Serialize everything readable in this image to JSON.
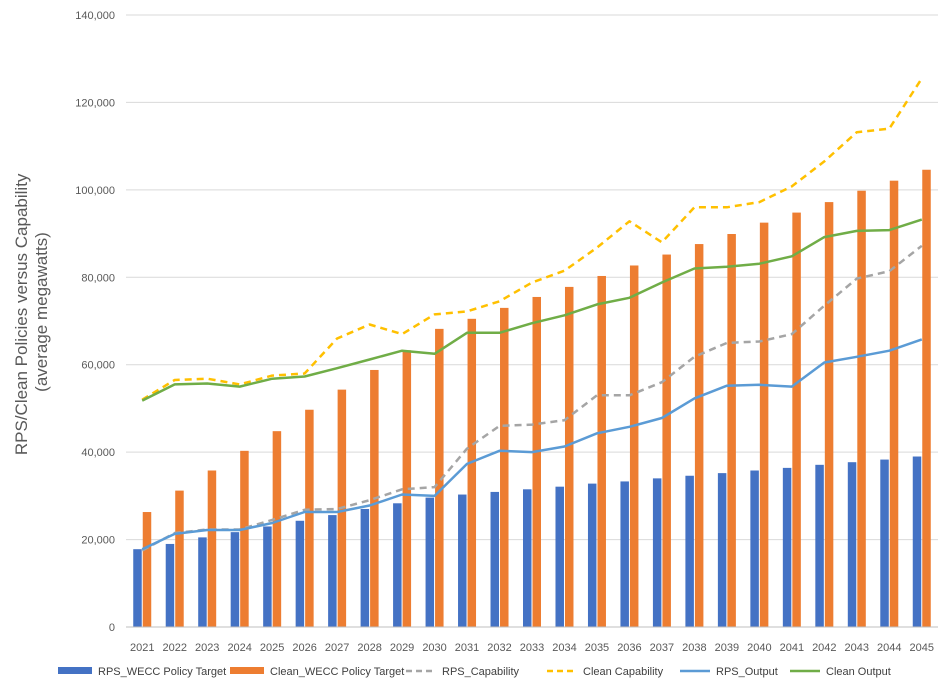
{
  "chart_data": {
    "type": "bar",
    "title": "",
    "ylabel_line1": "RPS/Clean Policies versus Capability",
    "ylabel_line2": "(average megawatts)",
    "xlabel": "",
    "ylim": [
      0,
      140000
    ],
    "yticks": [
      0,
      20000,
      40000,
      60000,
      80000,
      100000,
      120000,
      140000
    ],
    "ytick_labels": [
      "0",
      "20,000",
      "40,000",
      "60,000",
      "80,000",
      "100,000",
      "120,000",
      "140,000"
    ],
    "grid": true,
    "legend_position": "bottom",
    "categories": [
      "2021",
      "2022",
      "2023",
      "2024",
      "2025",
      "2026",
      "2027",
      "2028",
      "2029",
      "2030",
      "2031",
      "2032",
      "2033",
      "2034",
      "2035",
      "2036",
      "2037",
      "2038",
      "2039",
      "2040",
      "2041",
      "2042",
      "2043",
      "2044",
      "2045"
    ],
    "bar_series": [
      {
        "name": "RPS_WECC Policy Target",
        "color": "#4472C4",
        "values": [
          17800,
          19000,
          20500,
          21700,
          23000,
          24300,
          25600,
          27000,
          28300,
          29600,
          30300,
          30900,
          31500,
          32100,
          32800,
          33300,
          34000,
          34600,
          35200,
          35800,
          36400,
          37100,
          37700,
          38300,
          39000
        ]
      },
      {
        "name": "Clean_WECC Policy Target",
        "color": "#ED7D31",
        "values": [
          26300,
          31200,
          35800,
          40300,
          44800,
          49700,
          54300,
          58800,
          63300,
          68200,
          70500,
          73000,
          75500,
          77800,
          80300,
          82700,
          85200,
          87600,
          89900,
          92500,
          94800,
          97200,
          99800,
          102100,
          104600
        ]
      }
    ],
    "line_series": [
      {
        "name": "RPS_Capability",
        "color": "#A5A5A5",
        "dashed": true,
        "values": [
          17500,
          21500,
          22300,
          22300,
          24500,
          26800,
          27000,
          29000,
          31500,
          32000,
          40800,
          46000,
          46300,
          47300,
          53000,
          53000,
          56000,
          61800,
          65000,
          65300,
          67000,
          73500,
          79700,
          81400,
          87200
        ]
      },
      {
        "name": "Clean Capability",
        "color": "#FFC000",
        "dashed": true,
        "values": [
          52000,
          56500,
          56800,
          55500,
          57500,
          58000,
          66000,
          69200,
          67000,
          71500,
          72200,
          74500,
          78800,
          81500,
          86800,
          92800,
          88000,
          96000,
          96000,
          97200,
          100800,
          106500,
          113200,
          114000,
          125500
        ]
      },
      {
        "name": "RPS_Output",
        "color": "#5B9BD5",
        "dashed": false,
        "values": [
          17800,
          21300,
          22200,
          22200,
          23800,
          26300,
          26300,
          27800,
          30300,
          30000,
          37300,
          40300,
          40000,
          41300,
          44300,
          45800,
          47800,
          52300,
          55200,
          55400,
          55000,
          60500,
          61800,
          63200,
          65800
        ]
      },
      {
        "name": "Clean Output",
        "color": "#70AD47",
        "dashed": false,
        "values": [
          51800,
          55500,
          55700,
          55000,
          56800,
          57300,
          59200,
          61200,
          63200,
          62500,
          67300,
          67300,
          69500,
          71300,
          73800,
          75300,
          78800,
          82000,
          82400,
          83100,
          84800,
          89200,
          90600,
          90800,
          93200
        ]
      }
    ],
    "legend": [
      {
        "name": "RPS_WECC Policy Target",
        "kind": "bar",
        "color": "#4472C4"
      },
      {
        "name": "Clean_WECC Policy Target",
        "kind": "bar",
        "color": "#ED7D31"
      },
      {
        "name": "RPS_Capability",
        "kind": "dashed",
        "color": "#A5A5A5"
      },
      {
        "name": "Clean Capability",
        "kind": "dashed",
        "color": "#FFC000"
      },
      {
        "name": "RPS_Output",
        "kind": "line",
        "color": "#5B9BD5"
      },
      {
        "name": "Clean Output",
        "kind": "line",
        "color": "#70AD47"
      }
    ]
  }
}
